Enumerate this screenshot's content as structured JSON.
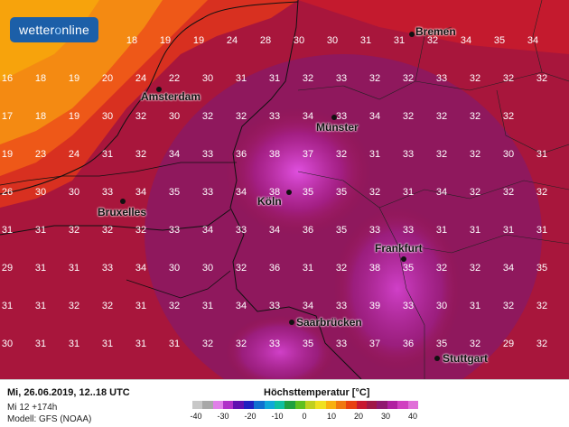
{
  "branding": {
    "logo_text_a": "wetter",
    "logo_text_b": "o",
    "logo_text_c": "nline"
  },
  "footer": {
    "run_date": "Mi, 26.06.2019, 12..18 UTC",
    "lead_time": "Mi 12 +174h",
    "model": "Modell: GFS (NOAA)",
    "legend_title": "Höchsttemperatur [°C]",
    "legend_ticks": [
      "-40",
      "-30",
      "-20",
      "-10",
      "0",
      "10",
      "20",
      "30",
      "40"
    ],
    "legend_colors": [
      "#c8c8c8",
      "#a8a8a8",
      "#e080e8",
      "#b030c8",
      "#6010b0",
      "#2020c0",
      "#1070d0",
      "#10a8d8",
      "#10c0a0",
      "#20a040",
      "#60c020",
      "#c0d020",
      "#f0e020",
      "#f8b010",
      "#f07810",
      "#e84010",
      "#c81830",
      "#a01848",
      "#901870",
      "#b020a0",
      "#d040c0",
      "#e070d8"
    ]
  },
  "cities": [
    {
      "name": "Bremen",
      "pos": "bremen"
    },
    {
      "name": "Amsterdam",
      "pos": "amsterdam"
    },
    {
      "name": "Münster",
      "pos": "muenster"
    },
    {
      "name": "Bruxelles",
      "pos": "bruxelles"
    },
    {
      "name": "Köln",
      "pos": "koeln"
    },
    {
      "name": "Frankfurt",
      "pos": "frankfurt"
    },
    {
      "name": "Saarbrücken",
      "pos": "saarbruecken"
    },
    {
      "name": "Stuttgart",
      "pos": "stuttgart"
    }
  ],
  "temperature_grid": [
    [
      "18",
      "19",
      "19",
      "24",
      "28",
      "30",
      "30",
      "31",
      "31",
      "32",
      "34",
      "35",
      "34"
    ],
    [
      "16",
      "18",
      "19",
      "20",
      "24",
      "22",
      "30",
      "31",
      "31",
      "32",
      "33",
      "32",
      "32",
      "33",
      "32",
      "32",
      "32"
    ],
    [
      "17",
      "18",
      "19",
      "30",
      "32",
      "30",
      "32",
      "32",
      "33",
      "34",
      "33",
      "34",
      "32",
      "32",
      "32",
      "32"
    ],
    [
      "19",
      "23",
      "24",
      "31",
      "32",
      "34",
      "33",
      "36",
      "38",
      "37",
      "32",
      "31",
      "33",
      "32",
      "32",
      "30",
      "31"
    ],
    [
      "26",
      "30",
      "30",
      "33",
      "34",
      "35",
      "33",
      "34",
      "38",
      "35",
      "35",
      "32",
      "31",
      "34",
      "32",
      "32",
      "32"
    ],
    [
      "31",
      "31",
      "32",
      "32",
      "32",
      "33",
      "34",
      "33",
      "34",
      "36",
      "35",
      "33",
      "33",
      "31",
      "31",
      "31",
      "31"
    ],
    [
      "29",
      "31",
      "31",
      "33",
      "34",
      "30",
      "30",
      "32",
      "36",
      "31",
      "32",
      "38",
      "35",
      "32",
      "32",
      "34",
      "35"
    ],
    [
      "31",
      "31",
      "32",
      "32",
      "31",
      "32",
      "31",
      "34",
      "33",
      "34",
      "33",
      "39",
      "33",
      "30",
      "31",
      "32",
      "32"
    ],
    [
      "30",
      "31",
      "31",
      "31",
      "31",
      "31",
      "32",
      "32",
      "33",
      "35",
      "33",
      "37",
      "36",
      "35",
      "32",
      "29",
      "32"
    ]
  ]
}
